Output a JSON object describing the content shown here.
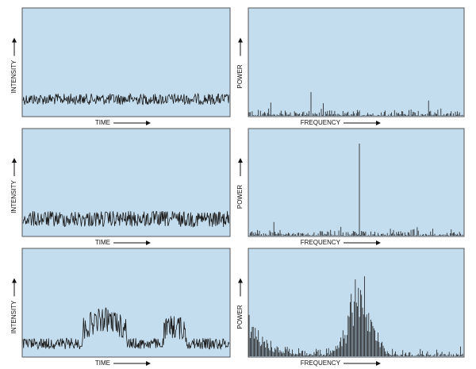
{
  "panels": [
    {
      "y_label": "INTENSITY",
      "x_label": "TIME"
    },
    {
      "y_label": "POWER",
      "x_label": "FREQUENCY"
    },
    {
      "y_label": "INTENSITY",
      "x_label": "TIME"
    },
    {
      "y_label": "POWER",
      "x_label": "FREQUENCY"
    },
    {
      "y_label": "INTENSITY",
      "x_label": "TIME"
    },
    {
      "y_label": "POWER",
      "x_label": "FREQUENCY"
    }
  ]
}
